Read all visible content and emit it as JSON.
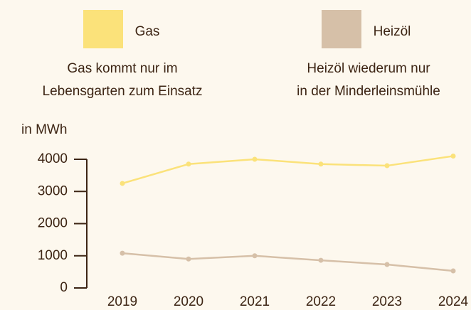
{
  "chart_data": {
    "type": "line",
    "y_axis_label": "in MWh",
    "categories": [
      "2019",
      "2020",
      "2021",
      "2022",
      "2023",
      "2024"
    ],
    "series": [
      {
        "name": "Gas",
        "color": "#fbe27a",
        "values": [
          3250,
          3850,
          4000,
          3850,
          3800,
          4100
        ]
      },
      {
        "name": "Heizöl",
        "color": "#d6c0a8",
        "values": [
          1080,
          900,
          1000,
          860,
          730,
          530
        ]
      }
    ],
    "annotations": [
      [
        "Gas kommt nur im",
        "Lebensgarten zum Einsatz"
      ],
      [
        "Heizöl wiederum nur",
        "in der Minderleinsmühle"
      ]
    ],
    "ylim": [
      0,
      4000
    ],
    "yticks": [
      0,
      1000,
      2000,
      3000,
      4000
    ]
  }
}
